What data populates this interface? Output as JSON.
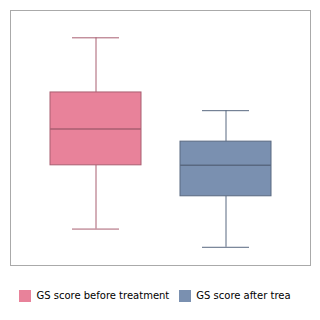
{
  "chart_data": {
    "type": "box",
    "series": [
      {
        "name": "GS score before treatment",
        "color": "#E8829A",
        "whisker_low": 2,
        "q1": 5.5,
        "median": 7.5,
        "q3": 9.5,
        "whisker_high": 12.5
      },
      {
        "name": "GS score after trea",
        "color": "#7A90B0",
        "whisker_low": 1,
        "q1": 3.8,
        "median": 5.5,
        "q3": 6.8,
        "whisker_high": 8.5
      }
    ],
    "ylim": [
      0,
      14
    ],
    "tick_labels": false,
    "grid": false,
    "legend": "bottom"
  }
}
